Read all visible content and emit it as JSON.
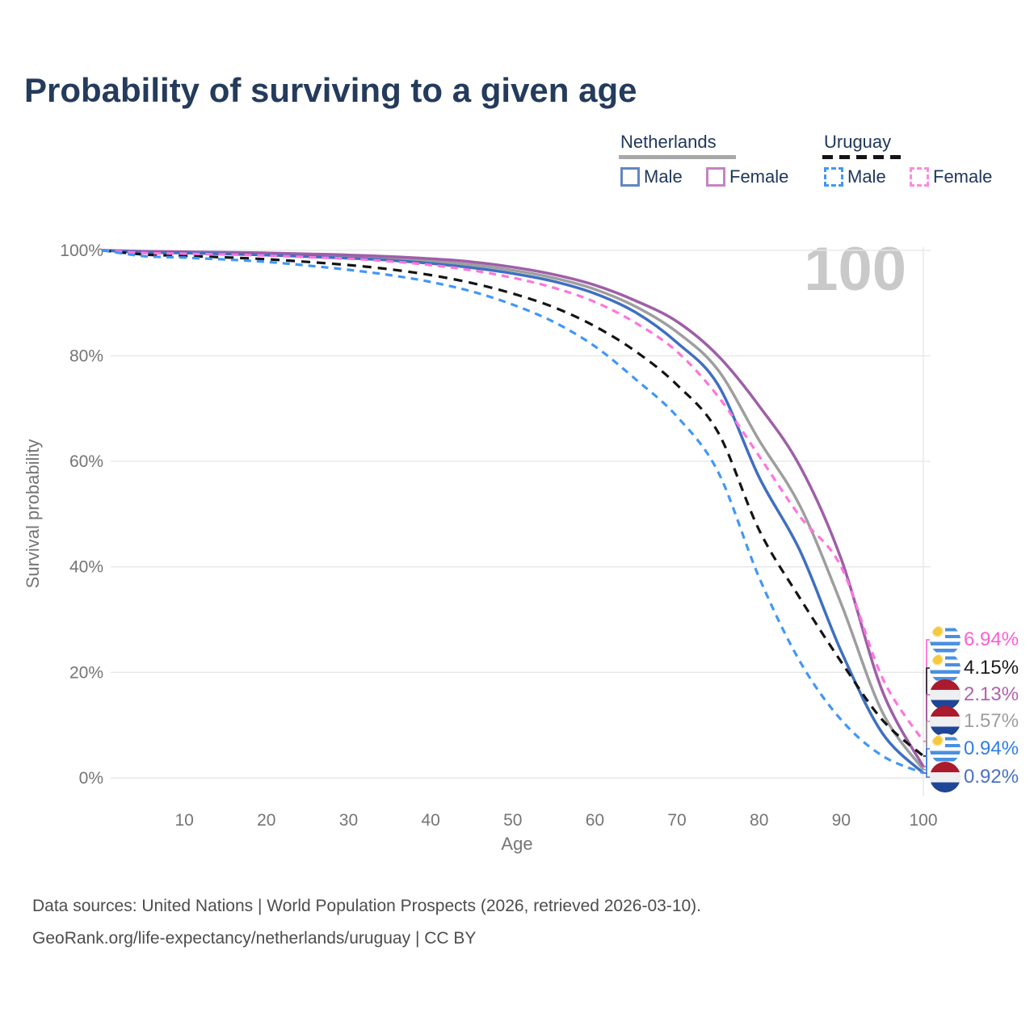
{
  "title": "Probability of surviving to a given age",
  "watermark_age_label": "100",
  "legend": {
    "groups": [
      {
        "name": "Netherlands",
        "line_style": "solid",
        "swatch_color": "#a8a8a8",
        "items": [
          {
            "label": "Male",
            "box_color": "#6186c6",
            "box_style": "solid"
          },
          {
            "label": "Female",
            "box_color": "#c583c1",
            "box_style": "solid"
          }
        ]
      },
      {
        "name": "Uruguay",
        "line_style": "dashed",
        "swatch_color": "#141414",
        "items": [
          {
            "label": "Male",
            "box_color": "#4197f7",
            "box_style": "dashed"
          },
          {
            "label": "Female",
            "box_color": "#ff8ae0",
            "box_style": "dashed"
          }
        ]
      }
    ]
  },
  "chart_data": {
    "type": "line",
    "title": "Probability of surviving to a given age",
    "xlabel": "Age",
    "ylabel": "Survival probability",
    "xlim": [
      0,
      100
    ],
    "ylim": [
      0,
      100
    ],
    "grid": "horizontal",
    "legend_position": "top-right",
    "x_ticks": [
      10,
      20,
      30,
      40,
      50,
      60,
      70,
      80,
      90,
      100
    ],
    "y_tick_labels": [
      "0%",
      "20%",
      "40%",
      "60%",
      "80%",
      "100%"
    ],
    "hovered_age": "100",
    "ages": [
      0,
      5,
      10,
      15,
      20,
      25,
      30,
      35,
      40,
      45,
      50,
      55,
      60,
      65,
      70,
      75,
      80,
      85,
      90,
      95,
      100
    ],
    "series": [
      {
        "name": "Netherlands",
        "color": "#9e9e9e",
        "dashed": false,
        "end_label": "1.57%",
        "values": [
          100,
          99.7,
          99.6,
          99.45,
          99.3,
          99.05,
          98.8,
          98.45,
          97.95,
          97.25,
          96.2,
          94.75,
          92.6,
          89.3,
          84.5,
          77.3,
          64,
          51.5,
          33,
          12.5,
          1.57
        ]
      },
      {
        "name": "Netherlands Female",
        "color": "#9e5fa7",
        "dashed": false,
        "end_label": "2.13%",
        "values": [
          100,
          99.8,
          99.7,
          99.6,
          99.5,
          99.3,
          99.1,
          98.8,
          98.4,
          97.8,
          96.8,
          95.4,
          93.4,
          90.4,
          86.5,
          80,
          70.5,
          59,
          41.5,
          16.5,
          2.13
        ]
      },
      {
        "name": "Netherlands Male",
        "color": "#3f6fc1",
        "dashed": false,
        "end_label": "0.92%",
        "values": [
          100,
          99.6,
          99.5,
          99.3,
          99.1,
          98.8,
          98.5,
          98.1,
          97.5,
          96.7,
          95.6,
          94.1,
          91.8,
          88.2,
          82.5,
          74.5,
          57,
          43,
          24,
          8.5,
          0.92
        ]
      },
      {
        "name": "Uruguay",
        "color": "#141414",
        "dashed": true,
        "end_label": "4.15%",
        "values": [
          100,
          99.2,
          98.95,
          98.65,
          98.3,
          97.8,
          97.2,
          96.4,
          95.3,
          93.8,
          91.8,
          89.2,
          85.6,
          80.8,
          74.5,
          65.5,
          47,
          34,
          22,
          11,
          4.15
        ]
      },
      {
        "name": "Uruguay Female",
        "color": "#ff74dc",
        "dashed": true,
        "end_label": "6.94%",
        "values": [
          100,
          99.5,
          99.35,
          99.2,
          99,
          98.7,
          98.4,
          97.9,
          97.2,
          96.2,
          94.8,
          92.9,
          90.2,
          86.2,
          80.8,
          72.3,
          61,
          49.5,
          40,
          19,
          6.94
        ]
      },
      {
        "name": "Uruguay Male",
        "color": "#4197f7",
        "dashed": true,
        "end_label": "0.94%",
        "values": [
          100,
          98.9,
          98.6,
          98.25,
          97.8,
          97.1,
          96.3,
          95.3,
          94,
          92.2,
          89.7,
          86.4,
          81.8,
          75.5,
          68.5,
          58,
          38,
          22,
          11,
          4.2,
          0.94
        ]
      }
    ]
  },
  "end_labels": [
    {
      "value": "6.94%",
      "series": "Uruguay Female",
      "flag": "uruguay",
      "color": "#ff5ed2",
      "end_pct": 6.94
    },
    {
      "value": "4.15%",
      "series": "Uruguay",
      "flag": "uruguay",
      "color": "#1a1a1a",
      "end_pct": 4.15
    },
    {
      "value": "2.13%",
      "series": "Netherlands Female",
      "flag": "netherlands",
      "color": "#b263ad",
      "end_pct": 2.13
    },
    {
      "value": "1.57%",
      "series": "Netherlands",
      "flag": "netherlands",
      "color": "#9e9e9e",
      "end_pct": 1.57
    },
    {
      "value": "0.94%",
      "series": "Uruguay Male",
      "flag": "uruguay",
      "color": "#2f7ee8",
      "end_pct": 0.94
    },
    {
      "value": "0.92%",
      "series": "Netherlands Male",
      "flag": "netherlands",
      "color": "#4a72c2",
      "end_pct": 0.92
    }
  ],
  "footer": {
    "line1": "Data sources: United Nations | World Population Prospects (2026, retrieved 2026-03-10).",
    "line2": "GeoRank.org/life-expectancy/netherlands/uruguay | CC BY"
  }
}
